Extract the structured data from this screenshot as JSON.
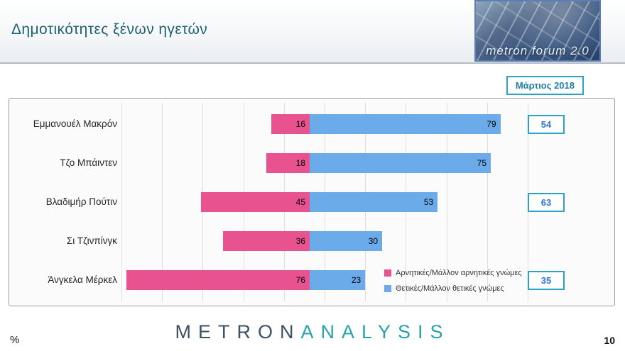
{
  "colors": {
    "negative": "#e8538f",
    "positive": "#6babe9",
    "box_border": "#29a3c7",
    "box_text": "#2e75c8",
    "title": "#1d6173",
    "brand_dark": "#3d5265",
    "brand_teal": "#2aa3a8"
  },
  "header": {
    "title": "Δημοτικότητες ξένων ηγετών",
    "logo_text": "metron forum 2.0"
  },
  "date_badge": "Μάρτιος 2018",
  "footer": {
    "percent_label": "%",
    "brand_part1": "METRON",
    "brand_part2": "ANALYSIS",
    "page_number": "10"
  },
  "chart_data": {
    "type": "bar",
    "variant": "horizontal-diverging",
    "title": "Δημοτικότητες ξένων ηγετών",
    "unit": "%",
    "categories": [
      "Εμμανουέλ Μακρόν",
      "Τζο Μπάιντεν",
      "Βλαδιμήρ Πούτιν",
      "Σι Τζινπίνγκ",
      "Άνγκελα Μέρκελ"
    ],
    "series": [
      {
        "name": "Αρνητικές/Μάλλον αρνητικές γνώμες",
        "color": "#e8538f",
        "direction": "left",
        "values": [
          16,
          18,
          45,
          36,
          76
        ]
      },
      {
        "name": "Θετικές/Μάλλον θετικές γνώμες",
        "color": "#6babe9",
        "direction": "right",
        "values": [
          79,
          75,
          53,
          30,
          23
        ]
      }
    ],
    "side_boxes": [
      {
        "row": 0,
        "value": 54
      },
      {
        "row": 2,
        "value": 63
      },
      {
        "row": 4,
        "value": 35
      }
    ],
    "legend_position": "bottom-right-inside",
    "grid": true,
    "xlim_left": 80,
    "xlim_right": 84
  }
}
